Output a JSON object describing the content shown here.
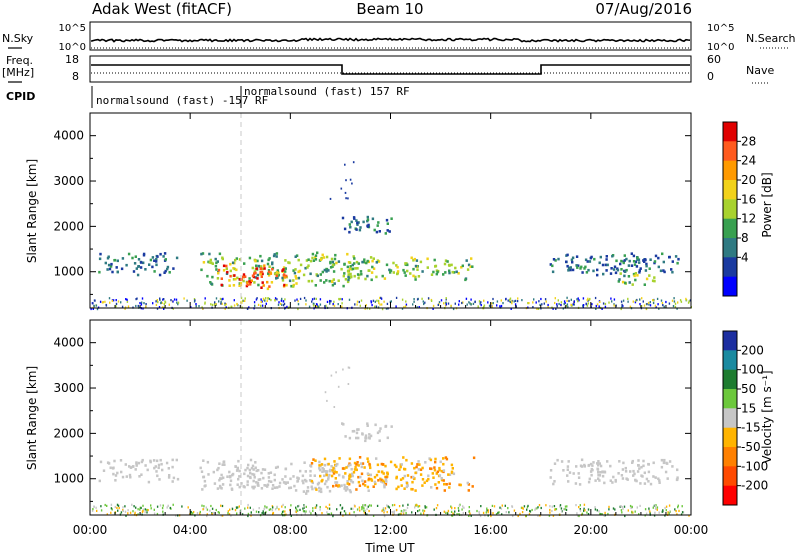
{
  "header": {
    "station": "Adak West (fitACF)",
    "beam": "Beam 10",
    "date": "07/Aug/2016"
  },
  "panels_top": {
    "nsky_label": "N.Sky",
    "nsky_ticks": [
      "10^5",
      "10^0"
    ],
    "nsearch_label": "N.Search",
    "nsearch_ticks": [
      "10^5",
      "10^0"
    ],
    "freq_label": "Freq.",
    "freq_unit": "[MHz]",
    "freq_ticks": [
      "18",
      "8"
    ],
    "nave_label": "Nave",
    "nave_ticks": [
      "60",
      "0"
    ],
    "cpid_label": "CPID",
    "cpid_entries": [
      {
        "text": "normalsound (fast) -157 RF"
      },
      {
        "text": "normalsound (fast) 157 RF"
      }
    ]
  },
  "colorbars": {
    "power": {
      "label": "Power [dB]",
      "ticks": [
        "28",
        "24",
        "20",
        "16",
        "12",
        "8",
        "4"
      ],
      "colors": [
        "#e00000",
        "#ff5a1e",
        "#ff9a00",
        "#f2d21a",
        "#a8d22e",
        "#38a050",
        "#2f7a82",
        "#1a3aa0",
        "#0000ff"
      ]
    },
    "velocity": {
      "label": "Velocity [m s⁻¹]",
      "ticks": [
        "200",
        "100",
        "50",
        "15",
        "-15",
        "-50",
        "-100",
        "-200"
      ],
      "colors": [
        "#1c2ea0",
        "#1a8aa0",
        "#1e7c30",
        "#6cc83c",
        "#c6c6c6",
        "#ffb400",
        "#ff8000",
        "#ff4a00",
        "#ff0000"
      ]
    }
  },
  "chart_data": [
    {
      "type": "heatmap",
      "title": "Power",
      "ylabel": "Slant Range [km]",
      "yticks": [
        1000,
        2000,
        3000,
        4000
      ],
      "ylim": [
        200,
        4500
      ],
      "xlim": [
        0,
        24
      ],
      "colorbar": "Power [dB]",
      "regions": [
        {
          "t0": 0.3,
          "t1": 3.5,
          "r0": 950,
          "r1": 1450,
          "level": "low"
        },
        {
          "t0": 4.3,
          "t1": 10.5,
          "r0": 700,
          "r1": 1450,
          "level": "mid"
        },
        {
          "t0": 5.0,
          "t1": 7.8,
          "r0": 650,
          "r1": 1200,
          "level": "high"
        },
        {
          "t0": 9.5,
          "t1": 15.3,
          "r0": 850,
          "r1": 1350,
          "level": "mid"
        },
        {
          "t0": 10.0,
          "t1": 12.0,
          "r0": 1850,
          "r1": 2250,
          "level": "low"
        },
        {
          "t0": 18.3,
          "t1": 23.5,
          "r0": 950,
          "r1": 1450,
          "level": "low"
        },
        {
          "t0": 21.0,
          "t1": 22.5,
          "r0": 700,
          "r1": 1050,
          "level": "mid"
        }
      ]
    },
    {
      "type": "heatmap",
      "title": "Velocity",
      "ylabel": "Slant Range [km]",
      "yticks": [
        1000,
        2000,
        3000,
        4000
      ],
      "ylim": [
        200,
        4500
      ],
      "xlim": [
        0,
        24
      ],
      "xlabel": "Time UT",
      "xticks": [
        "00:00",
        "04:00",
        "08:00",
        "12:00",
        "16:00",
        "20:00",
        "00:00"
      ],
      "colorbar": "Velocity [m s⁻¹]",
      "regions": [
        {
          "t0": 0.3,
          "t1": 3.5,
          "r0": 950,
          "r1": 1450,
          "level": "ground"
        },
        {
          "t0": 4.3,
          "t1": 10.5,
          "r0": 700,
          "r1": 1450,
          "level": "ground"
        },
        {
          "t0": 8.8,
          "t1": 15.3,
          "r0": 750,
          "r1": 1500,
          "level": "away"
        },
        {
          "t0": 10.0,
          "t1": 12.0,
          "r0": 1850,
          "r1": 2250,
          "level": "ground"
        },
        {
          "t0": 18.3,
          "t1": 23.5,
          "r0": 900,
          "r1": 1450,
          "level": "ground"
        }
      ]
    }
  ]
}
